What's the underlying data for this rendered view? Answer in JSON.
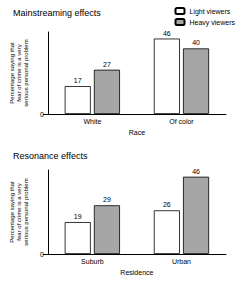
{
  "chart_data": [
    {
      "type": "bar",
      "title": "Mainstreaming effects",
      "x_label": "Race",
      "y_label": "Percentage saying that fear of crime is a very serious personal problem",
      "categories": [
        "White",
        "Of color"
      ],
      "series": [
        {
          "name": "Light viewers",
          "color": "#ffffff",
          "values": [
            17,
            46
          ]
        },
        {
          "name": "Heavy viewers",
          "color": "#a6a6a6",
          "values": [
            27,
            40
          ]
        }
      ],
      "ylim": [
        0,
        50
      ],
      "yticks": [
        0
      ],
      "grid": false,
      "data_labels": true,
      "legend": "upper right"
    },
    {
      "type": "bar",
      "title": "Resonance effects",
      "x_label": "Residence",
      "y_label": "Percentage saying that fear of crime is a very serious personal problem",
      "categories": [
        "Suburb",
        "Urban"
      ],
      "series": [
        {
          "name": "Light viewers",
          "color": "#ffffff",
          "values": [
            19,
            26
          ]
        },
        {
          "name": "Heavy viewers",
          "color": "#a6a6a6",
          "values": [
            29,
            46
          ]
        }
      ],
      "ylim": [
        0,
        50
      ],
      "yticks": [
        0
      ],
      "grid": false,
      "data_labels": true
    }
  ]
}
